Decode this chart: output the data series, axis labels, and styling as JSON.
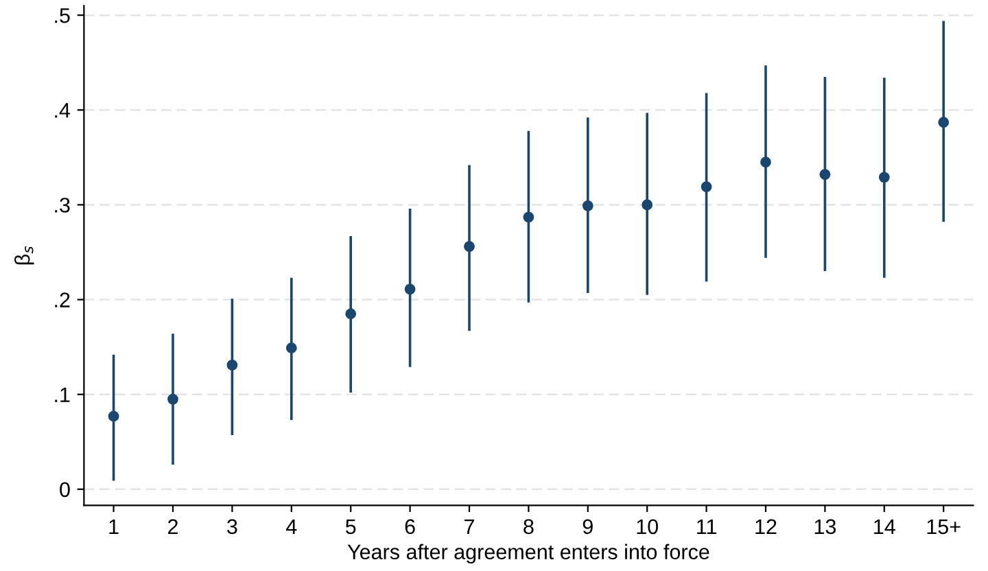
{
  "chart_data": {
    "type": "scatter",
    "xlabel": "Years after agreement enters into force",
    "ylabel": "β$_{s}$",
    "categories": [
      "1",
      "2",
      "3",
      "4",
      "5",
      "6",
      "7",
      "8",
      "9",
      "10",
      "11",
      "12",
      "13",
      "14",
      "15+"
    ],
    "values": [
      0.077,
      0.095,
      0.131,
      0.149,
      0.185,
      0.211,
      0.256,
      0.287,
      0.299,
      0.3,
      0.319,
      0.345,
      0.332,
      0.329,
      0.387
    ],
    "errors": [
      [
        0.009,
        0.142
      ],
      [
        0.026,
        0.164
      ],
      [
        0.057,
        0.201
      ],
      [
        0.073,
        0.223
      ],
      [
        0.102,
        0.267
      ],
      [
        0.129,
        0.296
      ],
      [
        0.167,
        0.342
      ],
      [
        0.197,
        0.378
      ],
      [
        0.207,
        0.392
      ],
      [
        0.205,
        0.397
      ],
      [
        0.219,
        0.418
      ],
      [
        0.244,
        0.447
      ],
      [
        0.23,
        0.435
      ],
      [
        0.223,
        0.434
      ],
      [
        0.282,
        0.494
      ]
    ],
    "color": "#1a476f",
    "marker": "circle",
    "grid": "y",
    "ylim": [
      -0.017,
      0.51
    ],
    "yticks": [
      0,
      {
        "value": 0.1,
        "label": ".1"
      },
      {
        "value": 0.2,
        "label": ".2"
      },
      {
        "value": 0.3,
        "label": ".3"
      },
      {
        "value": 0.4,
        "label": ".4"
      },
      {
        "value": 0.5,
        "label": ".5"
      }
    ]
  }
}
